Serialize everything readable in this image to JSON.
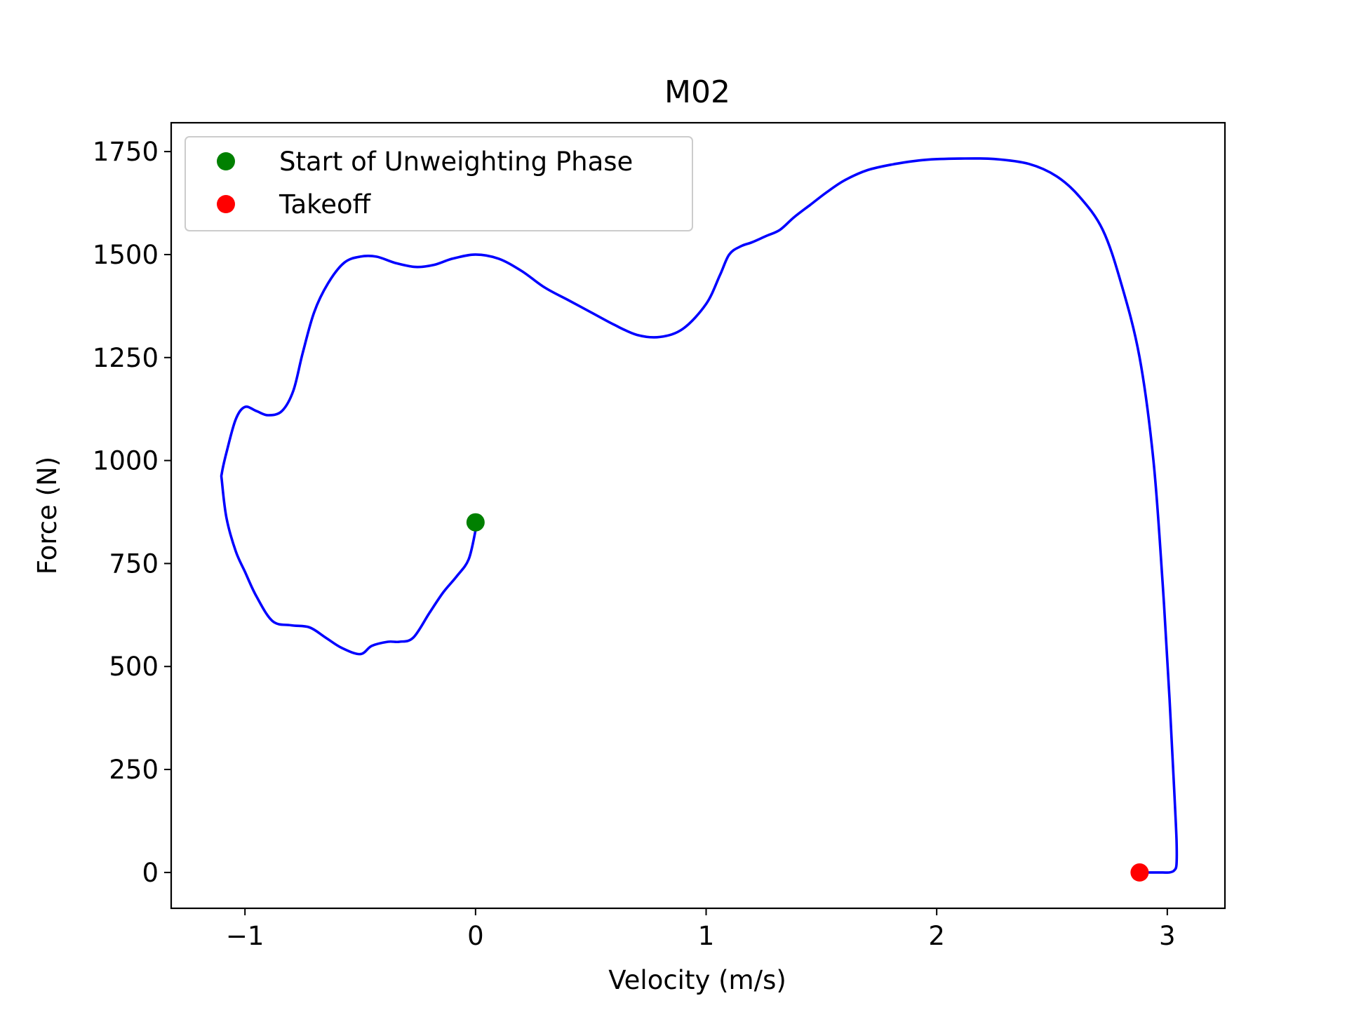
{
  "chart_data": {
    "type": "line",
    "title": "M02",
    "xlabel": "Velocity (m/s)",
    "ylabel": "Force (N)",
    "xlim": [
      -1.32,
      3.25
    ],
    "ylim": [
      -87,
      1820
    ],
    "xticks": [
      -1,
      0,
      1,
      2,
      3
    ],
    "xtick_labels": [
      "−1",
      "0",
      "1",
      "2",
      "3"
    ],
    "yticks": [
      0,
      250,
      500,
      750,
      1000,
      1250,
      1500,
      1750
    ],
    "ytick_labels": [
      "0",
      "250",
      "500",
      "750",
      "1000",
      "1250",
      "1500",
      "1750"
    ],
    "grid": false,
    "legend_position": "upper-left",
    "series": [
      {
        "color": "#0000ff",
        "x": [
          0.0,
          -0.03,
          -0.08,
          -0.14,
          -0.2,
          -0.27,
          -0.33,
          -0.38,
          -0.45,
          -0.5,
          -0.58,
          -0.65,
          -0.72,
          -0.8,
          -0.88,
          -0.95,
          -1.0,
          -1.04,
          -1.08,
          -1.1,
          -1.1,
          -1.08,
          -1.04,
          -1.0,
          -0.95,
          -0.9,
          -0.84,
          -0.79,
          -0.75,
          -0.7,
          -0.64,
          -0.57,
          -0.5,
          -0.43,
          -0.35,
          -0.26,
          -0.18,
          -0.1,
          0.0,
          0.1,
          0.2,
          0.3,
          0.4,
          0.5,
          0.6,
          0.7,
          0.8,
          0.9,
          1.0,
          1.06,
          1.1,
          1.15,
          1.2,
          1.26,
          1.32,
          1.38,
          1.45,
          1.52,
          1.6,
          1.7,
          1.82,
          1.95,
          2.1,
          2.25,
          2.4,
          2.52,
          2.62,
          2.72,
          2.8,
          2.88,
          2.94,
          2.98,
          3.01,
          3.03,
          3.04,
          3.04,
          3.03,
          3.01,
          2.98,
          2.94,
          2.9,
          2.87
        ],
        "y": [
          830,
          760,
          720,
          680,
          630,
          570,
          560,
          560,
          550,
          530,
          545,
          570,
          595,
          600,
          610,
          670,
          730,
          780,
          860,
          950,
          970,
          1020,
          1100,
          1130,
          1120,
          1110,
          1120,
          1170,
          1260,
          1360,
          1430,
          1480,
          1495,
          1495,
          1480,
          1470,
          1475,
          1490,
          1500,
          1490,
          1460,
          1420,
          1390,
          1360,
          1330,
          1305,
          1300,
          1320,
          1380,
          1450,
          1500,
          1520,
          1530,
          1545,
          1560,
          1590,
          1620,
          1650,
          1680,
          1705,
          1720,
          1730,
          1733,
          1732,
          1720,
          1690,
          1640,
          1560,
          1430,
          1250,
          1000,
          700,
          420,
          200,
          80,
          20,
          5,
          0,
          0,
          0,
          0,
          0
        ]
      },
      {
        "name": "Start of Unweighting Phase",
        "color": "#008000",
        "x": [
          0.0
        ],
        "y": [
          850
        ]
      },
      {
        "name": "Takeoff",
        "color": "#ff0000",
        "x": [
          2.88
        ],
        "y": [
          0
        ]
      }
    ]
  }
}
